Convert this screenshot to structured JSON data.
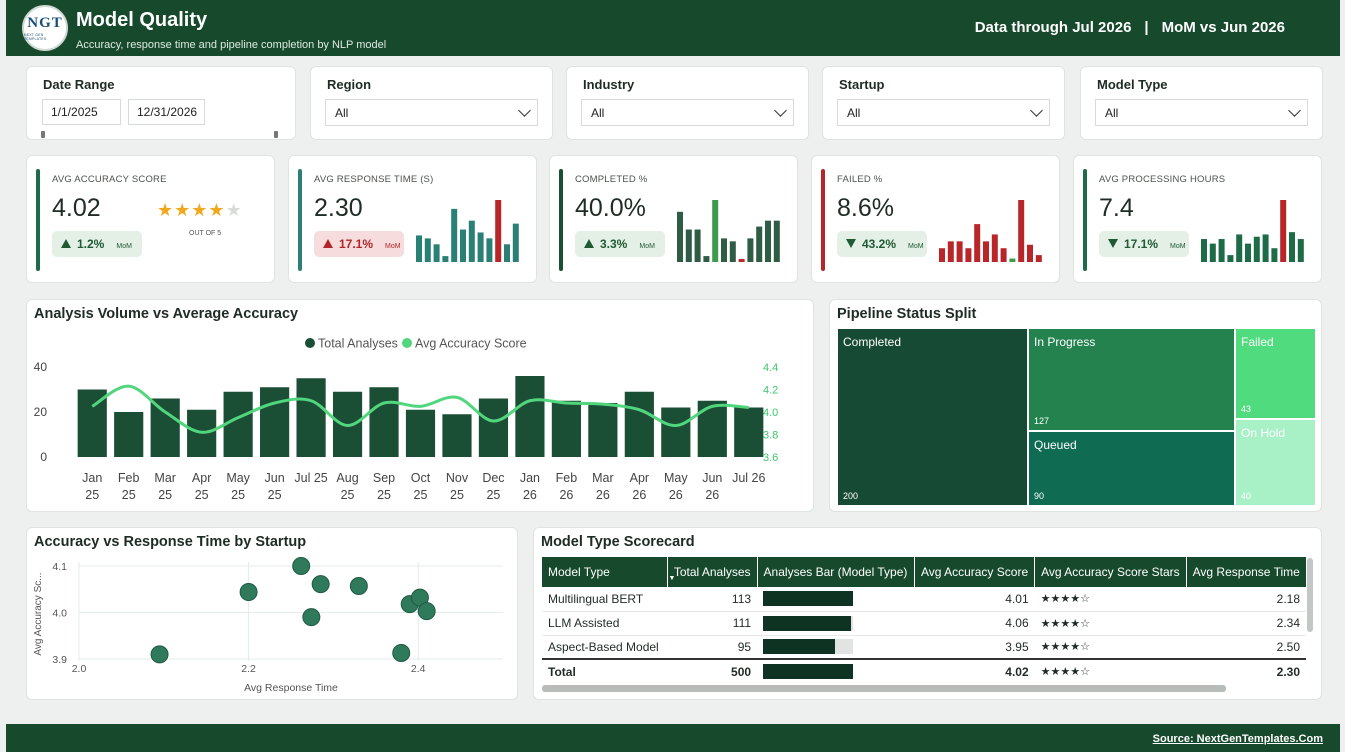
{
  "header": {
    "logo_text": "NGT",
    "logo_tagline": "NEXT GEN TEMPLATES",
    "title": "Model Quality",
    "subtitle": "Accuracy, response time and pipeline completion by NLP model",
    "data_through": "Data through Jul 2026",
    "separator": "|",
    "comparison": "MoM vs Jun 2026"
  },
  "filters": {
    "date_range": {
      "label": "Date Range",
      "start": "1/1/2025",
      "end": "12/31/2026"
    },
    "region": {
      "label": "Region",
      "value": "All"
    },
    "industry": {
      "label": "Industry",
      "value": "All"
    },
    "startup": {
      "label": "Startup",
      "value": "All"
    },
    "model_type": {
      "label": "Model Type",
      "value": "All"
    }
  },
  "kpis": {
    "accuracy": {
      "label": "AVG ACCURACY SCORE",
      "value": "4.02",
      "delta": "1.2%",
      "mom": "MoM",
      "stars": 4,
      "out_of": "OUT OF 5",
      "accent": "#1e6b47"
    },
    "response": {
      "label": "AVG RESPONSE TIME (S)",
      "value": "2.30",
      "delta": "17.1%",
      "mom": "MoM",
      "trend": "up-bad",
      "accent": "#2a8074",
      "spark": [
        {
          "v": 9,
          "c": "#2a8074"
        },
        {
          "v": 8,
          "c": "#2a8074"
        },
        {
          "v": 6,
          "c": "#2a8074"
        },
        {
          "v": 2,
          "c": "#2a8074"
        },
        {
          "v": 18,
          "c": "#2a8074"
        },
        {
          "v": 11,
          "c": "#2a8074"
        },
        {
          "v": 14,
          "c": "#2a8074"
        },
        {
          "v": 10,
          "c": "#2a8074"
        },
        {
          "v": 8,
          "c": "#2a8074"
        },
        {
          "v": 21,
          "c": "#b8262a"
        },
        {
          "v": 6,
          "c": "#2a8074"
        },
        {
          "v": 13,
          "c": "#2a8074"
        }
      ]
    },
    "completed": {
      "label": "COMPLETED %",
      "value": "40.0%",
      "delta": "3.3%",
      "mom": "MoM",
      "accent": "#1a4f35",
      "spark": [
        {
          "v": 17,
          "c": "#2f5c44"
        },
        {
          "v": 11,
          "c": "#2f5c44"
        },
        {
          "v": 11,
          "c": "#2f5c44"
        },
        {
          "v": 2,
          "c": "#2f5c44"
        },
        {
          "v": 21,
          "c": "#3e9a4f"
        },
        {
          "v": 8,
          "c": "#2f5c44"
        },
        {
          "v": 7,
          "c": "#2f5c44"
        },
        {
          "v": 1,
          "c": "#b8262a"
        },
        {
          "v": 8,
          "c": "#2f5c44"
        },
        {
          "v": 12,
          "c": "#2f5c44"
        },
        {
          "v": 14,
          "c": "#2f5c44"
        },
        {
          "v": 14,
          "c": "#2f5c44"
        }
      ]
    },
    "failed": {
      "label": "FAILED %",
      "value": "8.6%",
      "delta": "43.2%",
      "mom": "MoM",
      "accent": "#b8262a",
      "spark": [
        {
          "v": 4,
          "c": "#b8262a"
        },
        {
          "v": 6,
          "c": "#b8262a"
        },
        {
          "v": 6,
          "c": "#b8262a"
        },
        {
          "v": 4,
          "c": "#b8262a"
        },
        {
          "v": 11,
          "c": "#b8262a"
        },
        {
          "v": 6,
          "c": "#b8262a"
        },
        {
          "v": 8,
          "c": "#b8262a"
        },
        {
          "v": 4,
          "c": "#b8262a"
        },
        {
          "v": 1,
          "c": "#3e9a4f"
        },
        {
          "v": 18,
          "c": "#b8262a"
        },
        {
          "v": 5,
          "c": "#b8262a"
        },
        {
          "v": 2,
          "c": "#b8262a"
        }
      ]
    },
    "processing": {
      "label": "AVG PROCESSING HOURS",
      "value": "7.4",
      "delta": "17.1%",
      "mom": "MoM",
      "accent": "#1e6b47",
      "spark": [
        {
          "v": 10,
          "c": "#1e6b47"
        },
        {
          "v": 8,
          "c": "#1e6b47"
        },
        {
          "v": 10,
          "c": "#1e6b47"
        },
        {
          "v": 3,
          "c": "#1e6b47"
        },
        {
          "v": 12,
          "c": "#1e6b47"
        },
        {
          "v": 8,
          "c": "#1e6b47"
        },
        {
          "v": 11,
          "c": "#1e6b47"
        },
        {
          "v": 12,
          "c": "#1e6b47"
        },
        {
          "v": 6,
          "c": "#1e6b47"
        },
        {
          "v": 27,
          "c": "#b8262a"
        },
        {
          "v": 13,
          "c": "#1e6b47"
        },
        {
          "v": 10,
          "c": "#1e6b47"
        }
      ]
    }
  },
  "volume_chart": {
    "title": "Analysis Volume vs Average Accuracy",
    "legend": [
      "Total Analyses",
      "Avg Accuracy Score"
    ],
    "bar_color": "#1a4f35",
    "line_color": "#52d67d",
    "chart_data": {
      "type": "bar",
      "categories": [
        "Jan 25",
        "Feb 25",
        "Mar 25",
        "Apr 25",
        "May 25",
        "Jun 25",
        "Jul 25",
        "Aug 25",
        "Sep 25",
        "Oct 25",
        "Nov 25",
        "Dec 25",
        "Jan 26",
        "Feb 26",
        "Mar 26",
        "Apr 26",
        "May 26",
        "Jun 26",
        "Jul 26"
      ],
      "category_lines": [
        [
          "Jan",
          "25"
        ],
        [
          "Feb",
          "25"
        ],
        [
          "Mar",
          "25"
        ],
        [
          "Apr",
          "25"
        ],
        [
          "May",
          "25"
        ],
        [
          "Jun",
          "25"
        ],
        [
          "Jul 25",
          ""
        ],
        [
          "Aug",
          "25"
        ],
        [
          "Sep",
          "25"
        ],
        [
          "Oct",
          "25"
        ],
        [
          "Nov",
          "25"
        ],
        [
          "Dec",
          "25"
        ],
        [
          "Jan",
          "26"
        ],
        [
          "Feb",
          "26"
        ],
        [
          "Mar",
          "26"
        ],
        [
          "Apr",
          "26"
        ],
        [
          "May",
          "26"
        ],
        [
          "Jun",
          "26"
        ],
        [
          "Jul 26",
          ""
        ]
      ],
      "series": [
        {
          "name": "Total Analyses",
          "values": [
            30,
            20,
            26,
            21,
            29,
            31,
            35,
            29,
            31,
            21,
            19,
            26,
            36,
            25,
            24,
            29,
            22,
            25,
            22
          ]
        },
        {
          "name": "Avg Accuracy Score",
          "values": [
            4.05,
            4.23,
            4.0,
            3.82,
            3.95,
            4.08,
            4.1,
            3.88,
            4.08,
            4.05,
            4.13,
            3.92,
            4.1,
            4.08,
            4.07,
            4.02,
            3.88,
            4.05,
            4.04
          ]
        }
      ],
      "y_left_ticks": [
        0,
        20,
        40
      ],
      "y_left_range": [
        0,
        40
      ],
      "y_right_ticks": [
        3.6,
        3.8,
        4.0,
        4.2,
        4.4
      ],
      "y_right_ticks_labels": [
        "3.6",
        "3.8",
        "4.0",
        "4.2",
        "4.4"
      ],
      "y_right_range": [
        3.6,
        4.4
      ]
    }
  },
  "pipeline": {
    "title": "Pipeline Status Split",
    "chart_data": {
      "type": "treemap",
      "items": [
        {
          "name": "Completed",
          "value": 200,
          "value_label": "200",
          "color": "#174a34"
        },
        {
          "name": "In Progress",
          "value": 127,
          "value_label": "127",
          "color": "#24824f"
        },
        {
          "name": "Queued",
          "value": 90,
          "value_label": "90",
          "color": "#0f6b52"
        },
        {
          "name": "Failed",
          "value": 43,
          "value_label": "43",
          "color": "#50db7f"
        },
        {
          "name": "On Hold",
          "value": 40,
          "value_label": "40",
          "color": "#a8f0c6"
        }
      ]
    }
  },
  "scatter": {
    "title": "Accuracy vs Response Time by Startup",
    "point_color": "#2f7a5b",
    "chart_data": {
      "type": "scatter",
      "xlabel": "Avg Response Time",
      "ylabel": "Avg Accuracy Sc...",
      "x_ticks": [
        "2.0",
        "2.2",
        "2.4"
      ],
      "x_tick_values": [
        2.0,
        2.2,
        2.4
      ],
      "y_ticks": [
        "3.9",
        "4.0",
        "4.1"
      ],
      "y_tick_values": [
        3.9,
        4.0,
        4.1
      ],
      "xlim": [
        2.0,
        2.5
      ],
      "ylim": [
        3.9,
        4.1
      ],
      "points": [
        {
          "x": 2.095,
          "y": 3.91
        },
        {
          "x": 2.2,
          "y": 4.044
        },
        {
          "x": 2.262,
          "y": 4.1
        },
        {
          "x": 2.285,
          "y": 4.061
        },
        {
          "x": 2.274,
          "y": 3.99
        },
        {
          "x": 2.33,
          "y": 4.057
        },
        {
          "x": 2.38,
          "y": 3.913
        },
        {
          "x": 2.39,
          "y": 4.018
        },
        {
          "x": 2.402,
          "y": 4.032
        },
        {
          "x": 2.41,
          "y": 4.003
        }
      ]
    }
  },
  "scorecard": {
    "title": "Model Type Scorecard",
    "columns": [
      "Model Type",
      "Total Analyses",
      "Analyses Bar (Model Type)",
      "Avg Accuracy Score",
      "Avg Accuracy Score Stars",
      "Avg Response Time"
    ],
    "rows": [
      {
        "model": "Multilingual BERT",
        "total": "113",
        "bar_fraction": 1.0,
        "accuracy": "4.01",
        "stars": "★★★★☆",
        "response": "2.18"
      },
      {
        "model": "LLM Assisted",
        "total": "111",
        "bar_fraction": 0.982,
        "accuracy": "4.06",
        "stars": "★★★★☆",
        "response": "2.34"
      },
      {
        "model": "Aspect-Based Model",
        "total": "95",
        "bar_fraction": 0.8,
        "accuracy": "3.95",
        "stars": "★★★★☆",
        "response": "2.50"
      }
    ],
    "total": {
      "model": "Total",
      "total": "500",
      "bar_fraction": 1.0,
      "accuracy": "4.02",
      "stars": "★★★★☆",
      "response": "2.30"
    }
  },
  "footer": {
    "source": "Source: NextGenTemplates.Com"
  }
}
